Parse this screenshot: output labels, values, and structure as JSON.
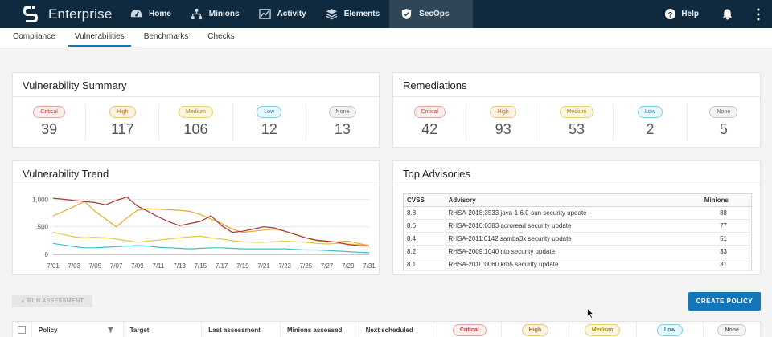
{
  "app": {
    "title": "Enterprise"
  },
  "nav": {
    "items": [
      {
        "label": "Home",
        "icon": "dashboard-icon"
      },
      {
        "label": "Minions",
        "icon": "network-icon"
      },
      {
        "label": "Activity",
        "icon": "activity-chart-icon"
      },
      {
        "label": "Elements",
        "icon": "layers-icon"
      },
      {
        "label": "SecOps",
        "icon": "shield-icon",
        "active": true
      }
    ],
    "help_label": "Help"
  },
  "subtabs": [
    {
      "label": "Compliance"
    },
    {
      "label": "Vulnerabilities",
      "active": true
    },
    {
      "label": "Benchmarks"
    },
    {
      "label": "Checks"
    }
  ],
  "summary": {
    "title": "Vulnerability Summary",
    "stats": [
      {
        "label": "Critical",
        "value": "39",
        "level": "critical"
      },
      {
        "label": "High",
        "value": "117",
        "level": "high"
      },
      {
        "label": "Medium",
        "value": "106",
        "level": "medium"
      },
      {
        "label": "Low",
        "value": "12",
        "level": "low"
      },
      {
        "label": "None",
        "value": "13",
        "level": "none"
      }
    ]
  },
  "remediations": {
    "title": "Remediations",
    "stats": [
      {
        "label": "Critical",
        "value": "42",
        "level": "critical"
      },
      {
        "label": "High",
        "value": "93",
        "level": "high"
      },
      {
        "label": "Medium",
        "value": "53",
        "level": "medium"
      },
      {
        "label": "Low",
        "value": "2",
        "level": "low"
      },
      {
        "label": "None",
        "value": "5",
        "level": "none"
      }
    ]
  },
  "trend": {
    "title": "Vulnerability Trend"
  },
  "chart_data": {
    "type": "line",
    "title": "Vulnerability Trend",
    "xlabel": "",
    "ylabel": "",
    "x": [
      "7/01",
      "7/02",
      "7/03",
      "7/04",
      "7/05",
      "7/06",
      "7/07",
      "7/08",
      "7/09",
      "7/10",
      "7/11",
      "7/12",
      "7/13",
      "7/14",
      "7/15",
      "7/16",
      "7/17",
      "7/18",
      "7/19",
      "7/20",
      "7/21",
      "7/22",
      "7/23",
      "7/24",
      "7/25",
      "7/26",
      "7/27",
      "7/28",
      "7/29",
      "7/30",
      "7/31"
    ],
    "tick_labels": [
      "7/01",
      "7/03",
      "7/05",
      "7/07",
      "7/09",
      "7/11",
      "7/13",
      "7/15",
      "7/17",
      "7/19",
      "7/21",
      "7/23",
      "7/25",
      "7/27",
      "7/29",
      "7/31"
    ],
    "y_ticks": [
      "0",
      "500",
      "1,000"
    ],
    "ylim": [
      0,
      1050
    ],
    "grid": true,
    "colors": {
      "critical": "#a83232",
      "high": "#e8a92e",
      "medium": "#e2c83a",
      "low": "#3cc0c8"
    },
    "series": [
      {
        "key": "critical",
        "values": [
          1020,
          1000,
          980,
          960,
          940,
          900,
          980,
          1040,
          880,
          780,
          680,
          590,
          520,
          560,
          600,
          700,
          520,
          400,
          420,
          460,
          500,
          480,
          420,
          360,
          300,
          260,
          240,
          220,
          180,
          160,
          150
        ]
      },
      {
        "key": "high",
        "values": [
          700,
          780,
          870,
          960,
          780,
          640,
          500,
          660,
          800,
          830,
          820,
          810,
          800,
          780,
          720,
          640,
          560,
          460,
          400,
          420,
          440,
          460,
          420,
          360,
          300,
          250,
          220,
          230,
          240,
          200,
          160
        ]
      },
      {
        "key": "medium",
        "values": [
          400,
          360,
          320,
          300,
          310,
          300,
          280,
          250,
          220,
          240,
          260,
          280,
          300,
          320,
          330,
          300,
          280,
          250,
          230,
          220,
          220,
          230,
          240,
          230,
          220,
          200,
          190,
          200,
          190,
          180,
          170
        ]
      },
      {
        "key": "low",
        "values": [
          200,
          170,
          140,
          120,
          120,
          130,
          140,
          150,
          160,
          150,
          130,
          120,
          110,
          100,
          110,
          120,
          120,
          110,
          100,
          100,
          100,
          100,
          100,
          90,
          80,
          80,
          70,
          60,
          50,
          40,
          30
        ]
      }
    ]
  },
  "advisories": {
    "title": "Top Advisories",
    "columns": {
      "cvss": "CVSS",
      "advisory": "Advisory",
      "minions": "Minions"
    },
    "rows": [
      {
        "cvss": "8.8",
        "advisory": "RHSA-2018:3533 java-1.6.0-sun security update",
        "minions": "88"
      },
      {
        "cvss": "8.6",
        "advisory": "RHSA-2010:0383 acroread security update",
        "minions": "77"
      },
      {
        "cvss": "8.4",
        "advisory": "RHSA-2011:0142 samba3x security update",
        "minions": "51"
      },
      {
        "cvss": "8.2",
        "advisory": "RHSA-2009:1040 ntp security update",
        "minions": "33"
      },
      {
        "cvss": "8.1",
        "advisory": "RHSA-2010:0060 krb5 security update",
        "minions": "31"
      }
    ]
  },
  "actions": {
    "run_assessment": "RUN ASSESSMENT",
    "create_policy": "CREATE POLICY"
  },
  "policy_table": {
    "columns": {
      "policy": "Policy",
      "target": "Target",
      "last_assessment": "Last assessment",
      "minions_assessed": "Minions assessed",
      "next_scheduled": "Next scheduled"
    },
    "severity": {
      "critical": "Critical",
      "high": "High",
      "medium": "Medium",
      "low": "Low",
      "none": "None"
    }
  }
}
